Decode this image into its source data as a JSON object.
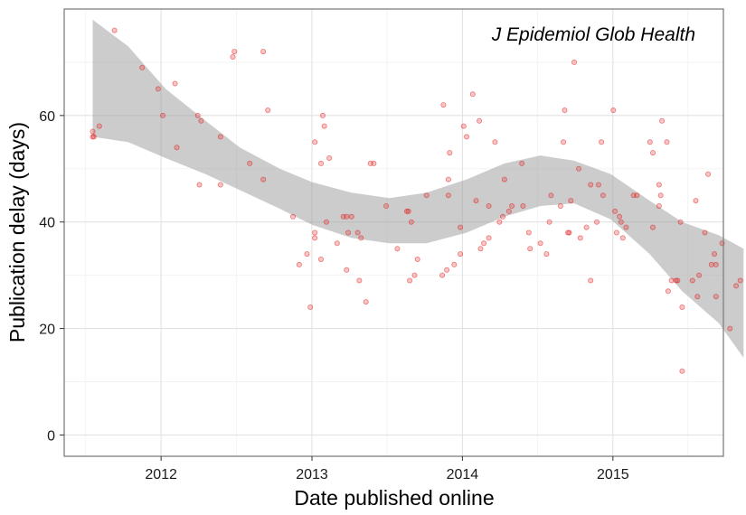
{
  "chart_data": {
    "type": "scatter",
    "title": "",
    "annotation": "J Epidemiol Glob Health",
    "xlabel": "Date published online",
    "ylabel": "Publication delay (days)",
    "xlim": [
      "2011-05-11",
      "2015-09-26"
    ],
    "ylim": [
      -4,
      80
    ],
    "x_ticks": [
      {
        "date": "2012-01-01",
        "label": "2012"
      },
      {
        "date": "2013-01-01",
        "label": "2013"
      },
      {
        "date": "2014-01-01",
        "label": "2014"
      },
      {
        "date": "2015-01-01",
        "label": "2015"
      }
    ],
    "x_minor_ticks": [
      "2011-07-02",
      "2012-07-02",
      "2013-07-02",
      "2014-07-02",
      "2015-07-02"
    ],
    "y_ticks": [
      0,
      20,
      40,
      60
    ],
    "y_minor_ticks": [
      10,
      30,
      50,
      70
    ],
    "grid": true,
    "point_color": "#e41a1c",
    "point_opacity": 0.25,
    "band_color": "#999999",
    "points": [
      {
        "x": "2011-07-19",
        "y": 57
      },
      {
        "x": "2011-07-19",
        "y": 56
      },
      {
        "x": "2011-07-22",
        "y": 56
      },
      {
        "x": "2011-08-04",
        "y": 58
      },
      {
        "x": "2011-09-10",
        "y": 76
      },
      {
        "x": "2011-11-16",
        "y": 69
      },
      {
        "x": "2011-12-25",
        "y": 65
      },
      {
        "x": "2012-01-05",
        "y": 60
      },
      {
        "x": "2012-02-04",
        "y": 66
      },
      {
        "x": "2012-02-08",
        "y": 54
      },
      {
        "x": "2012-03-30",
        "y": 60
      },
      {
        "x": "2012-04-07",
        "y": 59
      },
      {
        "x": "2012-04-03",
        "y": 47
      },
      {
        "x": "2012-05-24",
        "y": 56
      },
      {
        "x": "2012-05-24",
        "y": 47
      },
      {
        "x": "2012-06-23",
        "y": 71
      },
      {
        "x": "2012-06-27",
        "y": 72
      },
      {
        "x": "2012-08-03",
        "y": 51
      },
      {
        "x": "2012-09-05",
        "y": 72
      },
      {
        "x": "2012-09-05",
        "y": 48
      },
      {
        "x": "2012-09-16",
        "y": 61
      },
      {
        "x": "2012-11-16",
        "y": 41
      },
      {
        "x": "2012-12-01",
        "y": 32
      },
      {
        "x": "2012-12-20",
        "y": 34
      },
      {
        "x": "2012-12-28",
        "y": 24
      },
      {
        "x": "2013-01-08",
        "y": 37
      },
      {
        "x": "2013-01-08",
        "y": 55
      },
      {
        "x": "2013-01-08",
        "y": 38
      },
      {
        "x": "2013-01-23",
        "y": 51
      },
      {
        "x": "2013-01-23",
        "y": 33
      },
      {
        "x": "2013-01-27",
        "y": 60
      },
      {
        "x": "2013-01-31",
        "y": 58
      },
      {
        "x": "2013-02-05",
        "y": 40
      },
      {
        "x": "2013-02-12",
        "y": 52
      },
      {
        "x": "2013-03-03",
        "y": 36
      },
      {
        "x": "2013-03-18",
        "y": 41
      },
      {
        "x": "2013-03-26",
        "y": 41
      },
      {
        "x": "2013-03-26",
        "y": 31
      },
      {
        "x": "2013-03-30",
        "y": 38
      },
      {
        "x": "2013-04-07",
        "y": 41
      },
      {
        "x": "2013-04-22",
        "y": 38
      },
      {
        "x": "2013-04-26",
        "y": 29
      },
      {
        "x": "2013-04-30",
        "y": 37
      },
      {
        "x": "2013-05-12",
        "y": 25
      },
      {
        "x": "2013-05-23",
        "y": 51
      },
      {
        "x": "2013-05-31",
        "y": 51
      },
      {
        "x": "2013-06-30",
        "y": 43
      },
      {
        "x": "2013-07-27",
        "y": 35
      },
      {
        "x": "2013-08-19",
        "y": 42
      },
      {
        "x": "2013-08-23",
        "y": 42
      },
      {
        "x": "2013-08-26",
        "y": 29
      },
      {
        "x": "2013-08-30",
        "y": 40
      },
      {
        "x": "2013-09-07",
        "y": 30
      },
      {
        "x": "2013-09-14",
        "y": 33
      },
      {
        "x": "2013-10-06",
        "y": 45
      },
      {
        "x": "2013-11-13",
        "y": 30
      },
      {
        "x": "2013-11-16",
        "y": 62
      },
      {
        "x": "2013-11-24",
        "y": 31
      },
      {
        "x": "2013-11-28",
        "y": 45
      },
      {
        "x": "2013-11-28",
        "y": 48
      },
      {
        "x": "2013-12-01",
        "y": 53
      },
      {
        "x": "2013-12-12",
        "y": 32
      },
      {
        "x": "2013-12-27",
        "y": 34
      },
      {
        "x": "2013-12-27",
        "y": 39
      },
      {
        "x": "2014-01-04",
        "y": 58
      },
      {
        "x": "2014-01-11",
        "y": 56
      },
      {
        "x": "2014-01-26",
        "y": 64
      },
      {
        "x": "2014-02-03",
        "y": 44
      },
      {
        "x": "2014-02-11",
        "y": 59
      },
      {
        "x": "2014-02-14",
        "y": 35
      },
      {
        "x": "2014-02-22",
        "y": 36
      },
      {
        "x": "2014-03-06",
        "y": 37
      },
      {
        "x": "2014-03-06",
        "y": 43
      },
      {
        "x": "2014-03-21",
        "y": 55
      },
      {
        "x": "2014-04-01",
        "y": 40
      },
      {
        "x": "2014-04-09",
        "y": 41
      },
      {
        "x": "2014-04-13",
        "y": 48
      },
      {
        "x": "2014-04-24",
        "y": 42
      },
      {
        "x": "2014-05-01",
        "y": 43
      },
      {
        "x": "2014-05-25",
        "y": 51
      },
      {
        "x": "2014-05-28",
        "y": 43
      },
      {
        "x": "2014-06-11",
        "y": 38
      },
      {
        "x": "2014-06-14",
        "y": 35
      },
      {
        "x": "2014-07-09",
        "y": 36
      },
      {
        "x": "2014-07-24",
        "y": 34
      },
      {
        "x": "2014-07-31",
        "y": 40
      },
      {
        "x": "2014-08-04",
        "y": 45
      },
      {
        "x": "2014-08-27",
        "y": 43
      },
      {
        "x": "2014-09-03",
        "y": 55
      },
      {
        "x": "2014-09-06",
        "y": 61
      },
      {
        "x": "2014-09-14",
        "y": 38
      },
      {
        "x": "2014-09-17",
        "y": 38
      },
      {
        "x": "2014-09-21",
        "y": 44
      },
      {
        "x": "2014-09-29",
        "y": 70
      },
      {
        "x": "2014-10-10",
        "y": 50
      },
      {
        "x": "2014-10-14",
        "y": 37
      },
      {
        "x": "2014-10-29",
        "y": 39
      },
      {
        "x": "2014-11-08",
        "y": 29
      },
      {
        "x": "2014-11-08",
        "y": 47
      },
      {
        "x": "2014-11-23",
        "y": 40
      },
      {
        "x": "2014-11-27",
        "y": 47
      },
      {
        "x": "2014-12-04",
        "y": 55
      },
      {
        "x": "2014-12-08",
        "y": 45
      },
      {
        "x": "2015-01-02",
        "y": 61
      },
      {
        "x": "2015-01-06",
        "y": 42
      },
      {
        "x": "2015-01-10",
        "y": 38
      },
      {
        "x": "2015-01-17",
        "y": 41
      },
      {
        "x": "2015-01-21",
        "y": 40
      },
      {
        "x": "2015-01-25",
        "y": 37
      },
      {
        "x": "2015-02-02",
        "y": 39
      },
      {
        "x": "2015-02-20",
        "y": 45
      },
      {
        "x": "2015-02-28",
        "y": 45
      },
      {
        "x": "2015-04-01",
        "y": 55
      },
      {
        "x": "2015-04-08",
        "y": 39
      },
      {
        "x": "2015-04-08",
        "y": 53
      },
      {
        "x": "2015-04-23",
        "y": 47
      },
      {
        "x": "2015-04-23",
        "y": 43
      },
      {
        "x": "2015-04-27",
        "y": 45
      },
      {
        "x": "2015-04-30",
        "y": 59
      },
      {
        "x": "2015-05-12",
        "y": 55
      },
      {
        "x": "2015-05-15",
        "y": 27
      },
      {
        "x": "2015-05-23",
        "y": 29
      },
      {
        "x": "2015-06-03",
        "y": 29
      },
      {
        "x": "2015-06-07",
        "y": 29
      },
      {
        "x": "2015-06-14",
        "y": 40
      },
      {
        "x": "2015-06-18",
        "y": 24
      },
      {
        "x": "2015-06-18",
        "y": 12
      },
      {
        "x": "2015-07-13",
        "y": 29
      },
      {
        "x": "2015-07-21",
        "y": 44
      },
      {
        "x": "2015-07-25",
        "y": 26
      },
      {
        "x": "2015-07-29",
        "y": 30
      },
      {
        "x": "2015-08-12",
        "y": 38
      },
      {
        "x": "2015-08-20",
        "y": 49
      },
      {
        "x": "2015-08-28",
        "y": 32
      },
      {
        "x": "2015-09-04",
        "y": 34
      },
      {
        "x": "2015-09-08",
        "y": 32
      },
      {
        "x": "2015-09-08",
        "y": 26
      },
      {
        "x": "2015-09-23",
        "y": 36
      },
      {
        "x": "2015-10-12",
        "y": 20
      },
      {
        "x": "2015-10-27",
        "y": 28
      },
      {
        "x": "2015-11-06",
        "y": 29
      }
    ],
    "smooth_band": [
      {
        "x": "2011-07-19",
        "lower": 56,
        "upper": 78
      },
      {
        "x": "2011-10-13",
        "lower": 55,
        "upper": 73
      },
      {
        "x": "2012-01-12",
        "lower": 52,
        "upper": 65
      },
      {
        "x": "2012-04-18",
        "lower": 49,
        "upper": 59
      },
      {
        "x": "2012-07-10",
        "lower": 46,
        "upper": 54
      },
      {
        "x": "2012-10-15",
        "lower": 42.5,
        "upper": 50
      },
      {
        "x": "2013-01-01",
        "lower": 39.5,
        "upper": 47.5
      },
      {
        "x": "2013-04-07",
        "lower": 37,
        "upper": 45.5
      },
      {
        "x": "2013-07-08",
        "lower": 36,
        "upper": 44.5
      },
      {
        "x": "2013-10-06",
        "lower": 36,
        "upper": 45.5
      },
      {
        "x": "2014-01-11",
        "lower": 38,
        "upper": 48
      },
      {
        "x": "2014-04-13",
        "lower": 41,
        "upper": 51
      },
      {
        "x": "2014-07-09",
        "lower": 43,
        "upper": 52.5
      },
      {
        "x": "2014-09-29",
        "lower": 43.5,
        "upper": 51.5
      },
      {
        "x": "2014-12-27",
        "lower": 40.5,
        "upper": 49
      },
      {
        "x": "2015-03-31",
        "lower": 34,
        "upper": 44
      },
      {
        "x": "2015-06-18",
        "lower": 27,
        "upper": 40
      },
      {
        "x": "2015-09-15",
        "lower": 21,
        "upper": 37.5
      },
      {
        "x": "2015-11-14",
        "lower": 14.5,
        "upper": 35
      }
    ]
  }
}
